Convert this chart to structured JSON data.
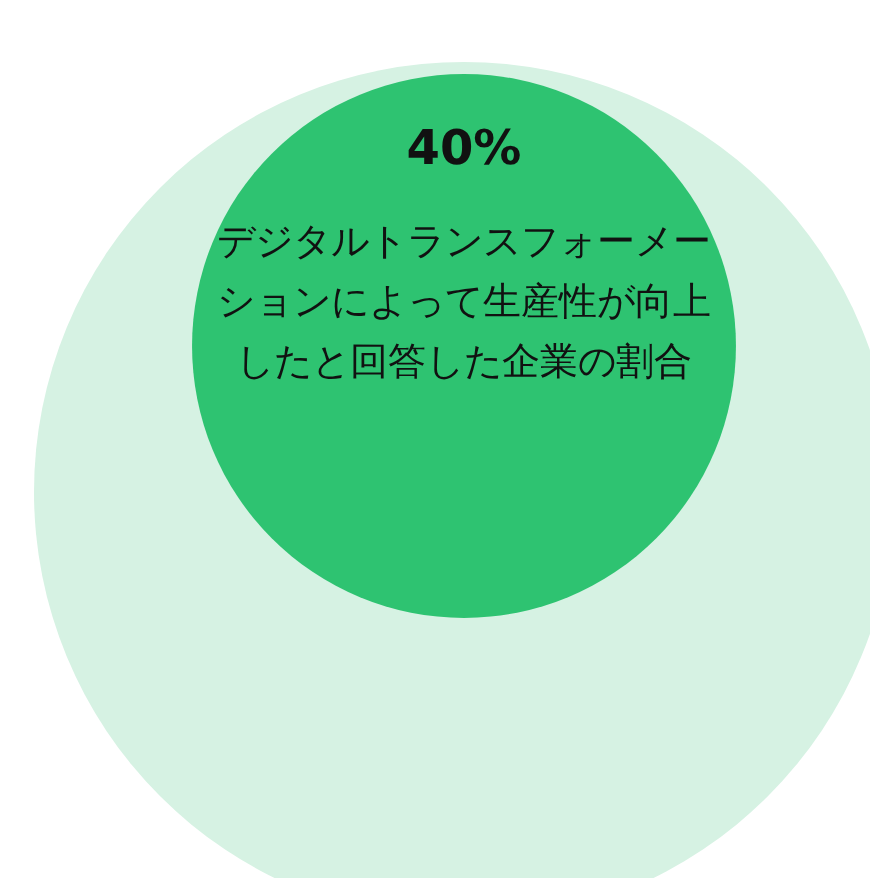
{
  "chart_data": {
    "type": "other",
    "categories": [
      "デジタルトランスフォーメーションによって生産性が向上したと回答した企業の割合"
    ],
    "values": [
      40
    ],
    "value_labels": [
      "40%"
    ],
    "colors": [
      "#2ec371"
    ]
  }
}
